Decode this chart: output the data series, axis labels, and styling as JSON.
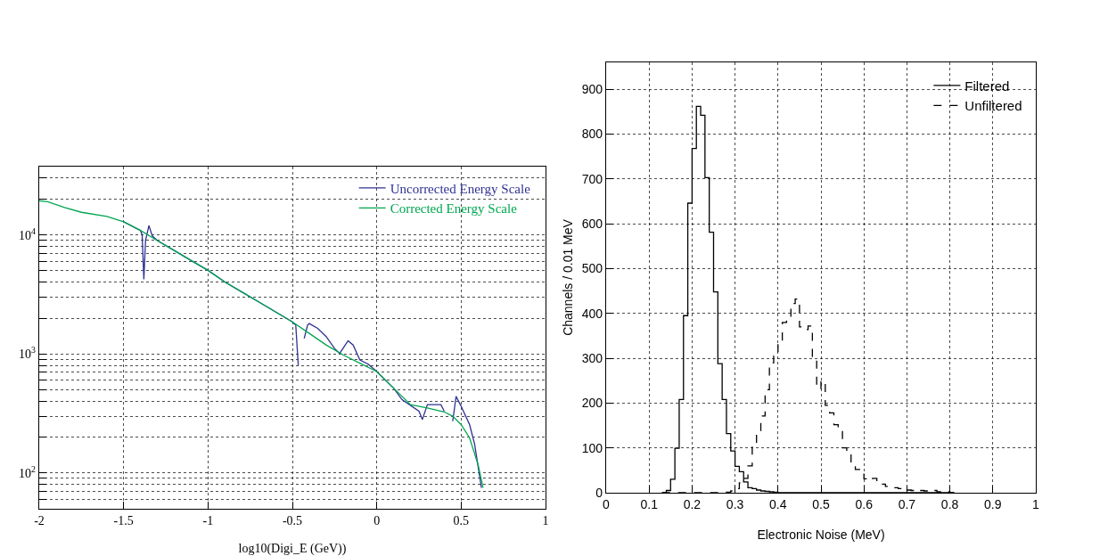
{
  "chart_data": [
    {
      "type": "line",
      "xlabel": "log10(Digi_E (GeV))",
      "log": "y",
      "grid": true,
      "legend": "top right",
      "marker": "none",
      "line_style": "solid",
      "xlim": [
        -2,
        1
      ],
      "xticks": [
        -2,
        -1.5,
        -1,
        -0.5,
        0,
        0.5,
        1
      ],
      "ylim": [
        50,
        37500
      ],
      "yticks": [
        {
          "value": 60,
          "label": null
        },
        {
          "value": 70,
          "label": null
        },
        {
          "value": 80,
          "label": null
        },
        {
          "value": 90,
          "label": null
        },
        {
          "value": 100,
          "label": "10$^{2}$"
        },
        {
          "value": 200,
          "label": null
        },
        {
          "value": 300,
          "label": null
        },
        {
          "value": 400,
          "label": null
        },
        {
          "value": 500,
          "label": null
        },
        {
          "value": 600,
          "label": null
        },
        {
          "value": 700,
          "label": null
        },
        {
          "value": 800,
          "label": null
        },
        {
          "value": 900,
          "label": null
        },
        {
          "value": 1000,
          "label": "10$^{3}$"
        },
        {
          "value": 2000,
          "label": null
        },
        {
          "value": 3000,
          "label": null
        },
        {
          "value": 4000,
          "label": null
        },
        {
          "value": 5000,
          "label": null
        },
        {
          "value": 6000,
          "label": null
        },
        {
          "value": 7000,
          "label": null
        },
        {
          "value": 8000,
          "label": null
        },
        {
          "value": 9000,
          "label": null
        },
        {
          "value": 10000,
          "label": "10$^{4}$"
        },
        {
          "value": 20000,
          "label": null
        },
        {
          "value": 30000,
          "label": null
        }
      ],
      "series": [
        {
          "name": "Uncorrected Energy Scale",
          "color": "#2e3192",
          "x": [
            -1.5,
            -1.4,
            -1.39,
            -1.38,
            -1.37,
            -1.35,
            -1.33,
            -1.3,
            -1.2,
            -1.1,
            -1.0,
            -0.9,
            -0.8,
            -0.7,
            -0.6,
            -0.5,
            -0.48,
            -0.465,
            -0.455,
            -0.445,
            -0.43,
            -0.41,
            -0.4,
            -0.35,
            -0.3,
            -0.25,
            -0.22,
            -0.17,
            -0.14,
            -0.1,
            -0.05,
            0,
            0.1,
            0.15,
            0.25,
            0.27,
            0.3,
            0.38,
            0.4,
            0.41,
            0.43,
            0.45,
            0.47,
            0.5,
            0.55,
            0.58,
            0.62
          ],
          "values": [
            12900,
            10900,
            10000,
            4240,
            9000,
            12000,
            9800,
            8970,
            7400,
            6100,
            5040,
            4020,
            3320,
            2740,
            2260,
            1860,
            1750,
            800,
            null,
            null,
            1350,
            1750,
            1800,
            1640,
            1400,
            1110,
            1010,
            1290,
            1190,
            890,
            820,
            711,
            516,
            413,
            330,
            281,
            375,
            375,
            330,
            null,
            null,
            272,
            440,
            363,
            255,
            174,
            75
          ]
        },
        {
          "name": "Corrected Energy Scale",
          "color": "#00a651",
          "x": [
            -2,
            -1.95,
            -1.85,
            -1.75,
            -1.6,
            -1.5,
            -1.4,
            -1.3,
            -1.2,
            -1.1,
            -1.0,
            -0.9,
            -0.8,
            -0.7,
            -0.6,
            -0.5,
            -0.4,
            -0.3,
            -0.2,
            -0.1,
            0,
            0.1,
            0.2,
            0.3,
            0.4,
            0.45,
            0.5,
            0.55,
            0.6,
            0.63
          ],
          "values": [
            19400,
            19000,
            17000,
            15500,
            14300,
            12900,
            10900,
            8970,
            7400,
            6100,
            5040,
            4020,
            3320,
            2740,
            2260,
            1860,
            1490,
            1190,
            982,
            836,
            711,
            516,
            375,
            352,
            326,
            300,
            255,
            197,
            118,
            75
          ]
        }
      ]
    },
    {
      "type": "histogram",
      "xlabel": "Electronic Noise (MeV)",
      "ylabel": "Channels / 0.01 MeV",
      "grid": true,
      "legend": "top right",
      "xlim": [
        0,
        1
      ],
      "xticks": [
        0,
        0.1,
        0.2,
        0.3,
        0.4,
        0.5,
        0.6,
        0.7,
        0.8,
        0.9,
        1
      ],
      "ylim": [
        0,
        960
      ],
      "yticks": [
        0,
        100,
        200,
        300,
        400,
        500,
        600,
        700,
        800,
        900
      ],
      "bins": [
        0.13,
        0.14,
        0.15,
        0.16,
        0.17,
        0.18,
        0.19,
        0.2,
        0.21,
        0.22,
        0.23,
        0.24,
        0.25,
        0.26,
        0.27,
        0.28,
        0.29,
        0.3,
        0.31,
        0.32,
        0.33,
        0.34,
        0.35,
        0.36,
        0.37,
        0.38,
        0.39,
        0.4,
        0.41,
        0.42,
        0.43,
        0.44,
        0.45,
        0.46,
        0.47,
        0.48,
        0.49,
        0.5,
        0.51,
        0.52,
        0.53,
        0.54,
        0.55,
        0.56,
        0.57,
        0.58,
        0.59,
        0.6,
        0.61,
        0.62,
        0.63,
        0.64,
        0.65,
        0.66,
        0.67,
        0.68,
        0.69,
        0.7,
        0.71,
        0.72,
        0.73,
        0.74,
        0.75,
        0.76,
        0.77,
        0.78,
        0.79,
        0.8,
        0.81
      ],
      "series": [
        {
          "name": "Filtered",
          "color": "#000000",
          "line_style": "solid",
          "values": [
            0,
            5,
            30,
            99,
            208,
            395,
            646,
            768,
            862,
            842,
            703,
            581,
            448,
            288,
            208,
            132,
            93,
            59,
            47,
            24,
            11,
            9,
            6,
            4,
            3,
            2,
            1,
            0,
            0,
            0,
            0,
            0,
            0,
            0,
            0,
            0,
            0,
            0,
            0,
            0,
            0,
            0,
            0,
            0,
            0,
            0,
            0,
            0,
            0,
            0,
            0,
            0,
            0,
            0,
            0,
            0,
            0,
            0,
            0,
            0,
            0,
            0,
            0,
            0,
            0,
            0,
            0,
            0
          ]
        },
        {
          "name": "Unfiltered",
          "color": "#000000",
          "line_style": "dashed",
          "values": [
            0,
            0,
            0,
            0,
            0,
            0,
            0,
            0,
            0,
            0,
            0,
            0,
            0,
            0,
            0,
            1,
            4,
            9,
            22,
            32,
            60,
            105,
            137,
            171,
            230,
            290,
            305,
            340,
            380,
            390,
            422,
            432,
            370,
            364,
            372,
            304,
            232,
            250,
            195,
            178,
            152,
            138,
            100,
            89,
            66,
            52,
            52,
            31,
            28,
            32,
            20,
            19,
            14,
            13,
            11,
            9,
            11,
            6,
            5,
            7,
            5,
            4,
            3,
            5,
            2,
            3,
            2,
            0
          ]
        }
      ]
    }
  ]
}
